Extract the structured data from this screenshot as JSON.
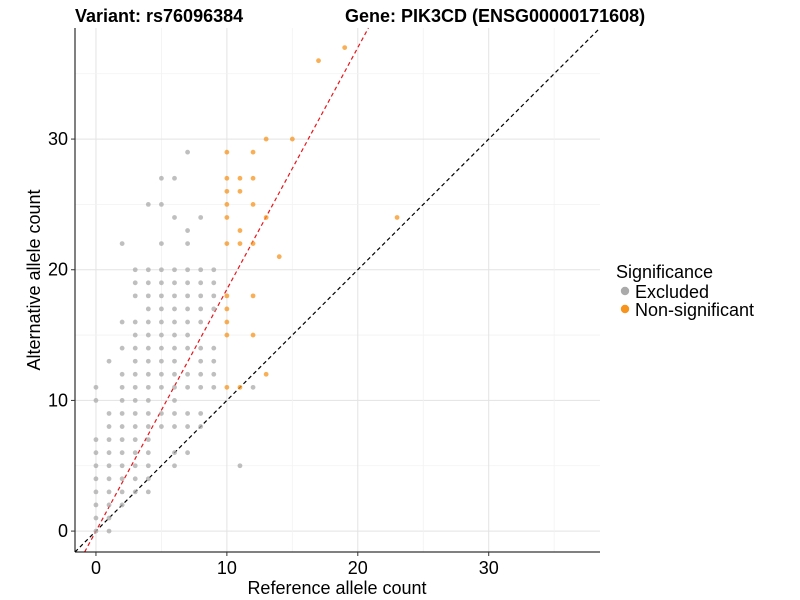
{
  "header": {
    "variant": "Variant: rs76096384",
    "gene": "Gene: PIK3CD (ENSG00000171608)"
  },
  "chart_data": {
    "type": "scatter",
    "title": "",
    "xlabel": "Reference allele count",
    "ylabel": "Alternative allele count",
    "xlim": [
      -1.6,
      38.5
    ],
    "ylim": [
      -1.6,
      38.5
    ],
    "xticks": [
      0,
      10,
      20,
      30
    ],
    "yticks": [
      0,
      10,
      20,
      30
    ],
    "grid": true,
    "legend": {
      "title": "Significance",
      "placement": "right",
      "entries": [
        {
          "label": "Excluded",
          "color": "#aaaaaa"
        },
        {
          "label": "Non-significant",
          "color": "#f7941d"
        }
      ]
    },
    "reference_lines": [
      {
        "name": "identity",
        "intercept": 0,
        "slope": 1,
        "color": "#000000",
        "dash": true
      },
      {
        "name": "fit",
        "intercept": 0,
        "slope": 1.85,
        "color": "#e8161b",
        "dash": true
      }
    ],
    "series": [
      {
        "name": "Excluded",
        "color": "#aaaaaa",
        "points": [
          [
            0,
            11
          ],
          [
            0,
            10
          ],
          [
            0,
            7
          ],
          [
            0,
            6
          ],
          [
            0,
            5
          ],
          [
            0,
            4
          ],
          [
            0,
            3
          ],
          [
            0,
            2
          ],
          [
            0,
            1
          ],
          [
            0,
            0
          ],
          [
            1,
            13
          ],
          [
            1,
            9
          ],
          [
            1,
            8
          ],
          [
            1,
            7
          ],
          [
            1,
            6
          ],
          [
            1,
            5
          ],
          [
            1,
            4
          ],
          [
            1,
            3
          ],
          [
            1,
            2
          ],
          [
            1,
            1
          ],
          [
            1,
            0
          ],
          [
            2,
            22
          ],
          [
            2,
            16
          ],
          [
            2,
            14
          ],
          [
            2,
            12
          ],
          [
            2,
            11
          ],
          [
            2,
            10
          ],
          [
            2,
            9
          ],
          [
            2,
            8
          ],
          [
            2,
            7
          ],
          [
            2,
            6
          ],
          [
            2,
            5
          ],
          [
            2,
            4
          ],
          [
            2,
            3
          ],
          [
            2,
            2
          ],
          [
            3,
            20
          ],
          [
            3,
            19
          ],
          [
            3,
            18
          ],
          [
            3,
            16
          ],
          [
            3,
            15
          ],
          [
            3,
            14
          ],
          [
            3,
            13
          ],
          [
            3,
            12
          ],
          [
            3,
            11
          ],
          [
            3,
            10
          ],
          [
            3,
            9
          ],
          [
            3,
            8
          ],
          [
            3,
            7
          ],
          [
            3,
            6
          ],
          [
            3,
            5
          ],
          [
            3,
            4
          ],
          [
            3,
            3
          ],
          [
            4,
            25
          ],
          [
            4,
            20
          ],
          [
            4,
            19
          ],
          [
            4,
            18
          ],
          [
            4,
            17
          ],
          [
            4,
            16
          ],
          [
            4,
            15
          ],
          [
            4,
            14
          ],
          [
            4,
            13
          ],
          [
            4,
            12
          ],
          [
            4,
            11
          ],
          [
            4,
            10
          ],
          [
            4,
            9
          ],
          [
            4,
            8
          ],
          [
            4,
            7
          ],
          [
            4,
            6
          ],
          [
            4,
            5
          ],
          [
            4,
            4
          ],
          [
            4,
            3
          ],
          [
            5,
            27
          ],
          [
            5,
            25
          ],
          [
            5,
            22
          ],
          [
            5,
            20
          ],
          [
            5,
            19
          ],
          [
            5,
            18
          ],
          [
            5,
            17
          ],
          [
            5,
            16
          ],
          [
            5,
            15
          ],
          [
            5,
            14
          ],
          [
            5,
            13
          ],
          [
            5,
            12
          ],
          [
            5,
            11
          ],
          [
            5,
            9
          ],
          [
            5,
            8
          ],
          [
            6,
            27
          ],
          [
            6,
            24
          ],
          [
            6,
            20
          ],
          [
            6,
            19
          ],
          [
            6,
            18
          ],
          [
            6,
            17
          ],
          [
            6,
            16
          ],
          [
            6,
            15
          ],
          [
            6,
            14
          ],
          [
            6,
            13
          ],
          [
            6,
            12
          ],
          [
            6,
            11
          ],
          [
            6,
            10
          ],
          [
            6,
            9
          ],
          [
            6,
            8
          ],
          [
            6,
            6
          ],
          [
            6,
            5
          ],
          [
            7,
            29
          ],
          [
            7,
            23
          ],
          [
            7,
            22
          ],
          [
            7,
            20
          ],
          [
            7,
            19
          ],
          [
            7,
            18
          ],
          [
            7,
            17
          ],
          [
            7,
            16
          ],
          [
            7,
            15
          ],
          [
            7,
            14
          ],
          [
            7,
            12
          ],
          [
            7,
            11
          ],
          [
            7,
            9
          ],
          [
            7,
            8
          ],
          [
            7,
            6
          ],
          [
            8,
            24
          ],
          [
            8,
            20
          ],
          [
            8,
            19
          ],
          [
            8,
            18
          ],
          [
            8,
            17
          ],
          [
            8,
            16
          ],
          [
            8,
            14
          ],
          [
            8,
            13
          ],
          [
            8,
            12
          ],
          [
            8,
            11
          ],
          [
            8,
            9
          ],
          [
            8,
            8
          ],
          [
            9,
            20
          ],
          [
            9,
            19
          ],
          [
            9,
            18
          ],
          [
            9,
            17
          ],
          [
            9,
            14
          ],
          [
            9,
            13
          ],
          [
            9,
            12
          ],
          [
            9,
            11
          ],
          [
            11,
            5
          ],
          [
            12,
            11
          ]
        ]
      },
      {
        "name": "Non-significant",
        "color": "#f7941d",
        "points": [
          [
            10,
            29
          ],
          [
            10,
            27
          ],
          [
            10,
            26
          ],
          [
            10,
            25
          ],
          [
            10,
            24
          ],
          [
            10,
            22
          ],
          [
            10,
            18
          ],
          [
            10,
            17
          ],
          [
            10,
            16
          ],
          [
            10,
            15
          ],
          [
            10,
            11
          ],
          [
            11,
            27
          ],
          [
            11,
            26
          ],
          [
            11,
            23
          ],
          [
            11,
            22
          ],
          [
            11,
            11
          ],
          [
            12,
            29
          ],
          [
            12,
            27
          ],
          [
            12,
            25
          ],
          [
            12,
            22
          ],
          [
            12,
            18
          ],
          [
            12,
            15
          ],
          [
            13,
            30
          ],
          [
            13,
            24
          ],
          [
            13,
            12
          ],
          [
            14,
            21
          ],
          [
            15,
            30
          ],
          [
            17,
            36
          ],
          [
            19,
            37
          ],
          [
            23,
            24
          ]
        ]
      }
    ]
  }
}
